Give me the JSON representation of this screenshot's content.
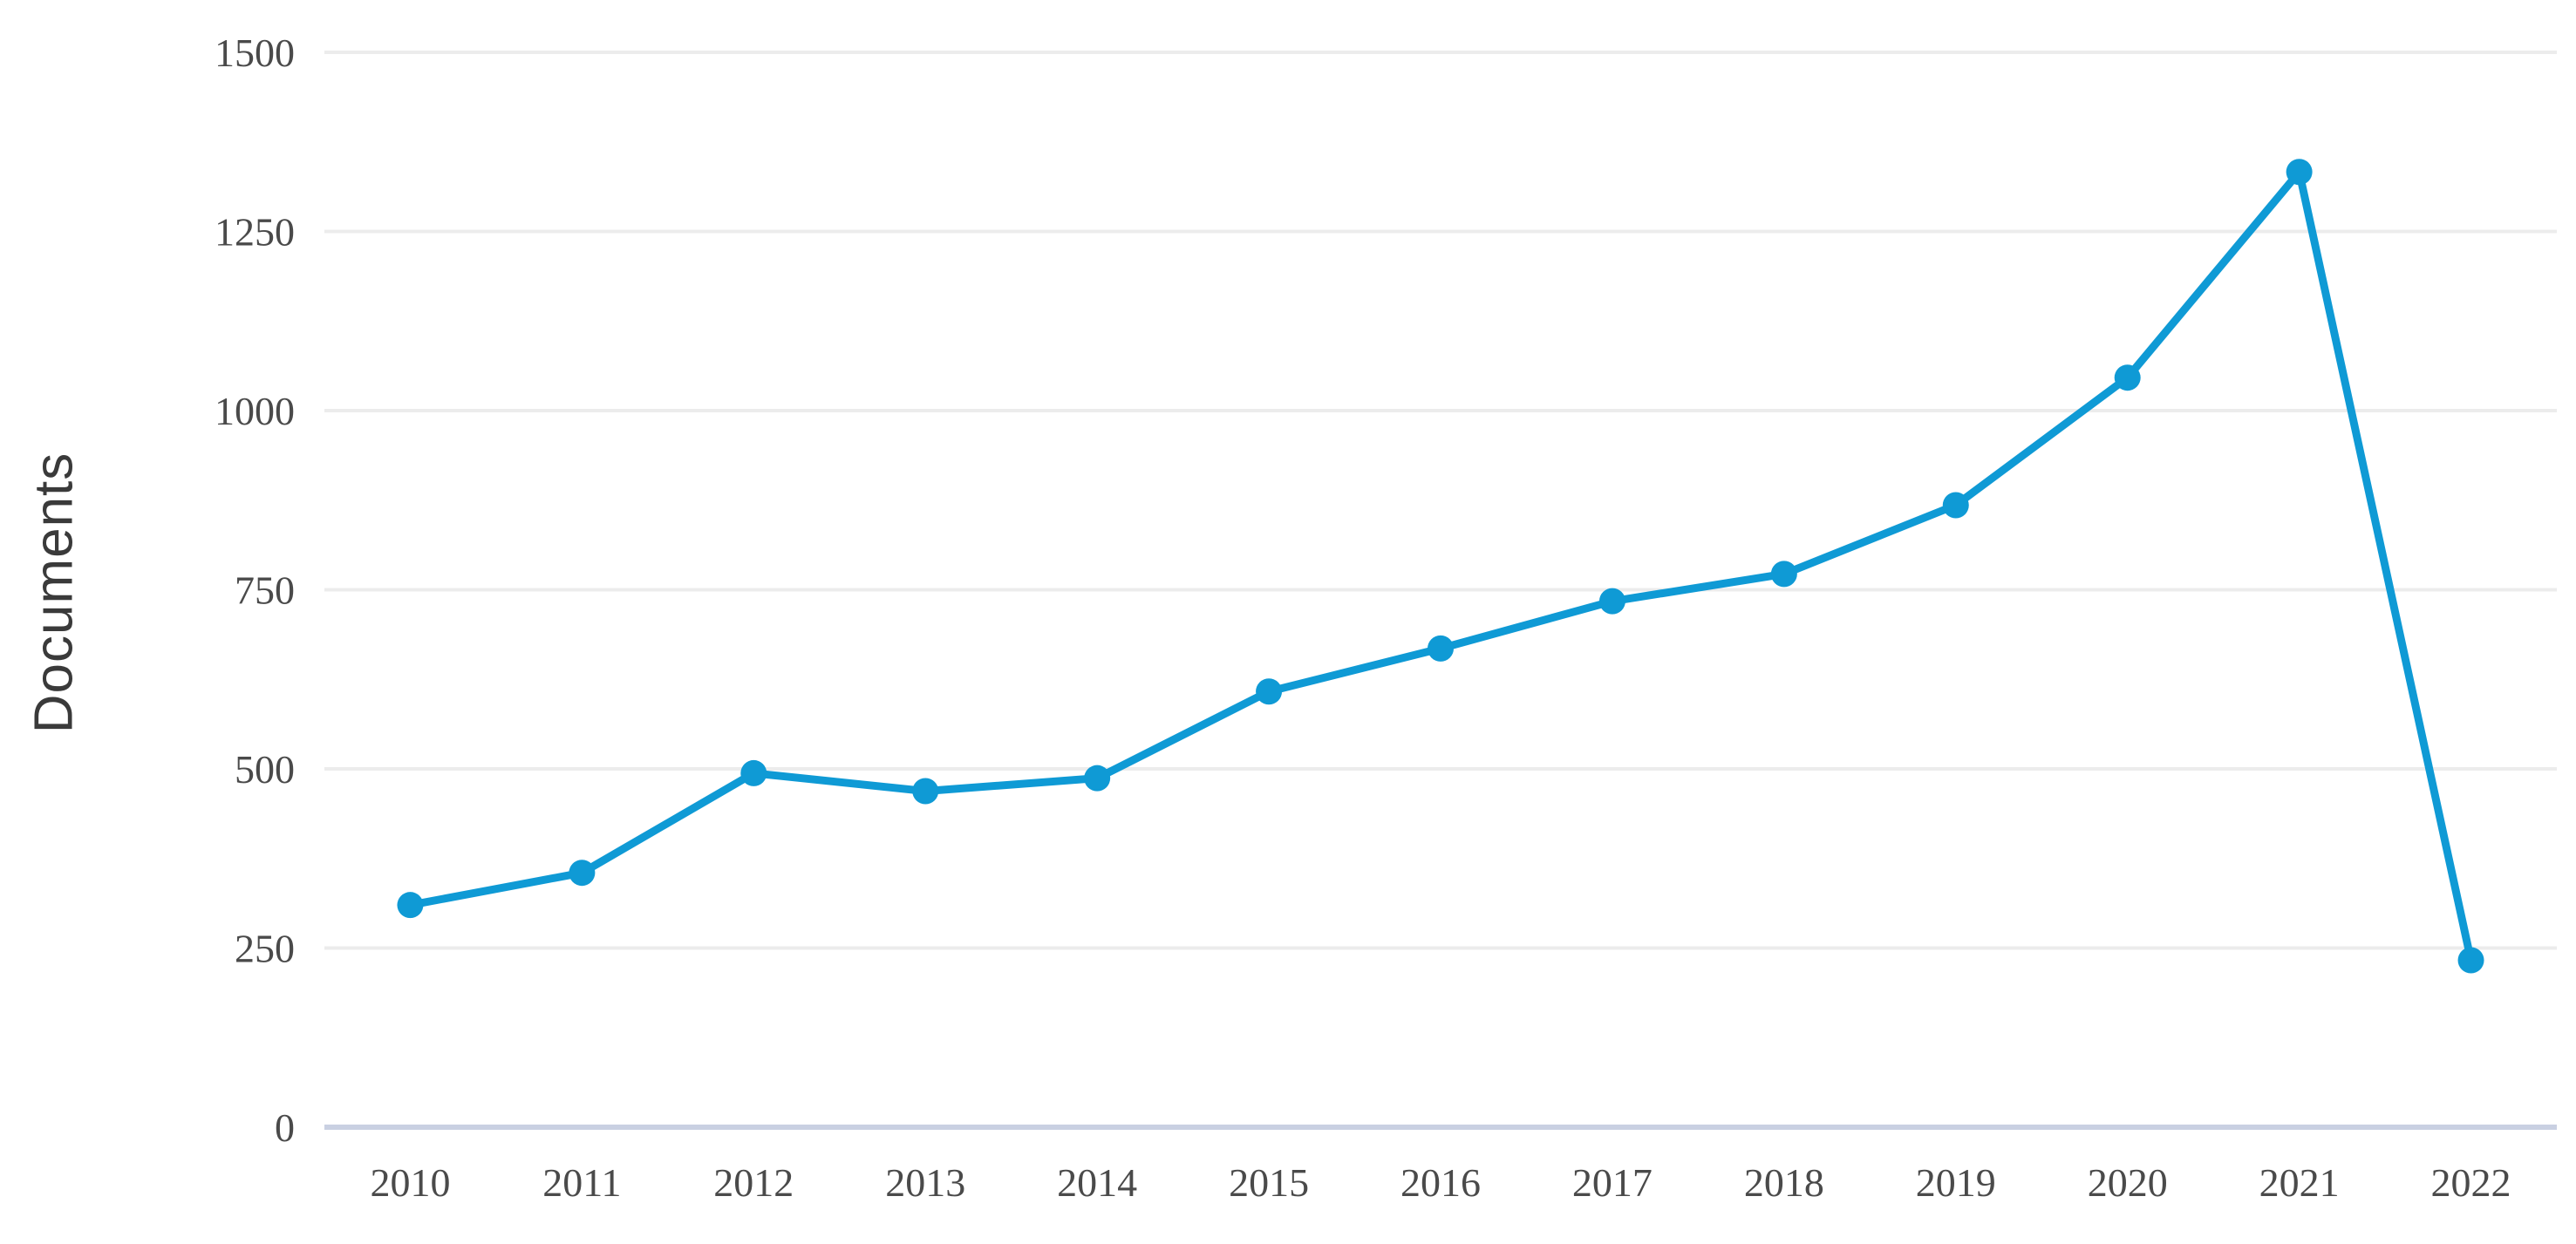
{
  "chart_data": {
    "type": "line",
    "title": "",
    "xlabel": "",
    "ylabel": "Documents",
    "categories": [
      "2010",
      "2011",
      "2012",
      "2013",
      "2014",
      "2015",
      "2016",
      "2017",
      "2018",
      "2019",
      "2020",
      "2021",
      "2022"
    ],
    "series": [
      {
        "name": "Documents",
        "values": [
          310,
          355,
          494,
          469,
          487,
          608,
          668,
          734,
          772,
          868,
          1046,
          1333,
          233
        ]
      }
    ],
    "y_ticks": [
      0,
      250,
      500,
      750,
      1000,
      1250,
      1500
    ],
    "ylim": [
      0,
      1500
    ],
    "grid": true,
    "legend_position": "none",
    "colors": {
      "line": "#0f9ad5",
      "marker": "#0f9ad5",
      "gridline": "#ececec",
      "zero_axis_line": "#c9d0e2",
      "tick_label": "#4a4a4a",
      "axis_title": "#3a3a3a",
      "background": "#ffffff"
    }
  }
}
